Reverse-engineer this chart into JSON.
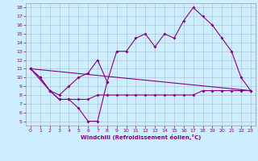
{
  "xlabel": "Windchill (Refroidissement éolien,°C)",
  "bg_color": "#cceeff",
  "line_color": "#880088",
  "xlim": [
    -0.5,
    23.5
  ],
  "ylim": [
    4.5,
    18.5
  ],
  "xticks": [
    0,
    1,
    2,
    3,
    4,
    5,
    6,
    7,
    8,
    9,
    10,
    11,
    12,
    13,
    14,
    15,
    16,
    17,
    18,
    19,
    20,
    21,
    22,
    23
  ],
  "yticks": [
    5,
    6,
    7,
    8,
    9,
    10,
    11,
    12,
    13,
    14,
    15,
    16,
    17,
    18
  ],
  "line1_x": [
    0,
    1,
    2,
    3,
    4,
    5,
    6,
    7,
    8
  ],
  "line1_y": [
    11,
    10,
    8.5,
    7.5,
    7.5,
    6.5,
    5,
    5,
    9.5
  ],
  "line2_x": [
    0,
    2,
    3,
    4,
    5,
    6,
    7,
    8,
    9,
    10,
    11,
    12,
    13,
    14,
    15,
    16,
    17,
    18,
    19,
    20,
    21,
    22,
    23
  ],
  "line2_y": [
    11,
    8.5,
    7.5,
    7.5,
    7.5,
    7.5,
    8,
    8,
    8,
    8,
    8,
    8,
    8,
    8,
    8,
    8,
    8,
    8.5,
    8.5,
    8.5,
    8.5,
    8.5,
    8.5
  ],
  "line3_x": [
    0,
    1,
    2,
    3,
    4,
    5,
    6,
    7,
    8,
    9,
    10,
    11,
    12,
    13,
    14,
    15,
    16,
    17,
    18,
    19,
    20,
    21,
    22,
    23
  ],
  "line3_y": [
    11,
    10,
    8.5,
    8,
    9,
    10,
    10.5,
    12,
    9.5,
    13,
    13,
    14.5,
    15,
    13.5,
    15,
    14.5,
    16.5,
    18,
    17,
    16,
    14.5,
    13,
    10,
    8.5
  ],
  "line4_x": [
    0,
    23
  ],
  "line4_y": [
    11,
    8.5
  ]
}
